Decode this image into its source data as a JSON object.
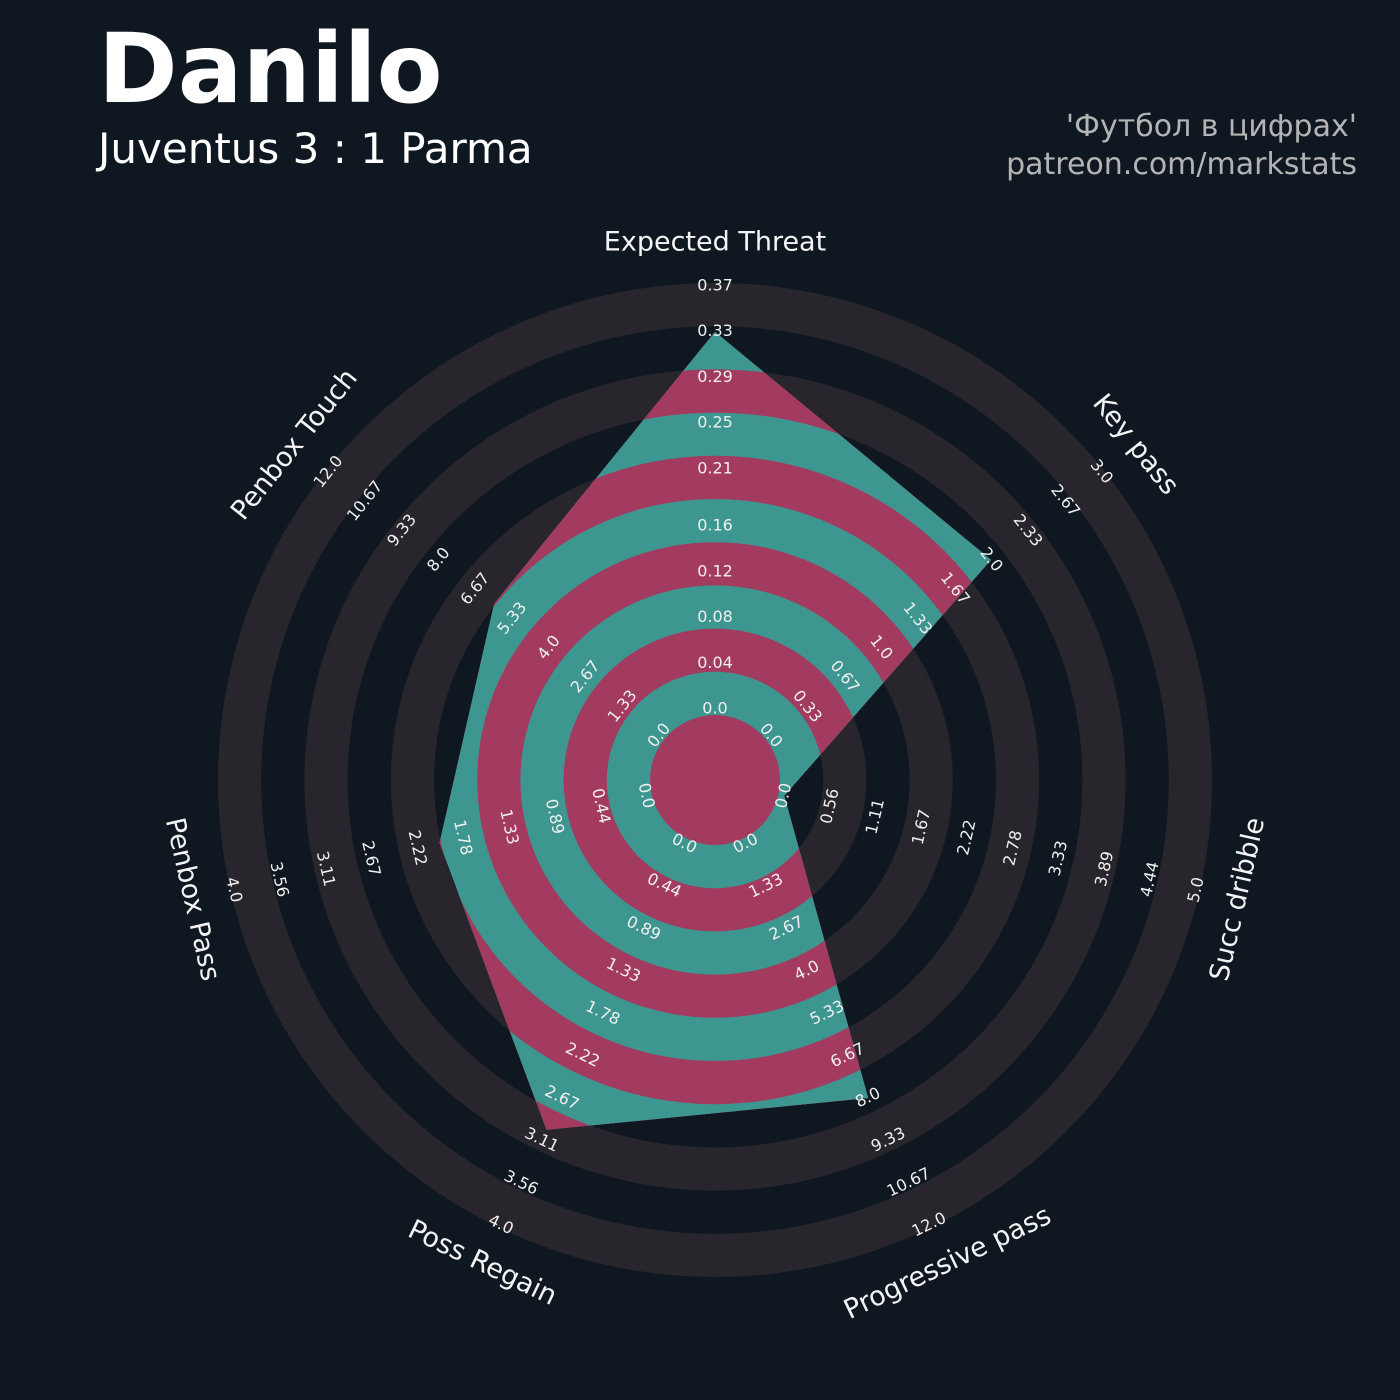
{
  "chart_data": {
    "type": "radar",
    "title": "Danilo",
    "subtitle": "Juventus 3 : 1 Parma",
    "annotations": [
      "'Футбол в цифрах'",
      "patreon.com/markstats"
    ],
    "axes": [
      {
        "name": "Expected Threat",
        "lim": [
          0,
          0.37
        ],
        "ticks": [
          {
            "value": 0,
            "label": "0.0"
          },
          0.04,
          0.08,
          0.12,
          0.16,
          0.21,
          0.25,
          0.29,
          0.33,
          0.37
        ]
      },
      {
        "name": "Key pass",
        "lim": [
          0,
          3
        ],
        "ticks": [
          {
            "value": 0,
            "label": "0.0"
          },
          0.33,
          0.67,
          {
            "value": 1,
            "label": "1.0"
          },
          1.33,
          1.67,
          {
            "value": 2,
            "label": "2.0"
          },
          2.33,
          2.67,
          {
            "value": 3,
            "label": "3.0"
          }
        ]
      },
      {
        "name": "Succ dribble",
        "lim": [
          0,
          5
        ],
        "ticks": [
          {
            "value": 0,
            "label": "0.0"
          },
          0.56,
          1.11,
          1.67,
          2.22,
          2.78,
          3.33,
          3.89,
          4.44,
          {
            "value": 5,
            "label": "5.0"
          }
        ]
      },
      {
        "name": "Progressive pass",
        "lim": [
          0,
          12
        ],
        "ticks": [
          {
            "value": 0,
            "label": "0.0"
          },
          1.33,
          2.67,
          {
            "value": 4,
            "label": "4.0"
          },
          5.33,
          6.67,
          {
            "value": 8,
            "label": "8.0"
          },
          9.33,
          10.67,
          {
            "value": 12,
            "label": "12.0"
          }
        ]
      },
      {
        "name": "Poss Regain",
        "lim": [
          0,
          4
        ],
        "ticks": [
          {
            "value": 0,
            "label": "0.0"
          },
          0.44,
          0.89,
          1.33,
          1.78,
          2.22,
          2.67,
          3.11,
          3.56,
          {
            "value": 4,
            "label": "4.0"
          }
        ]
      },
      {
        "name": "Penbox Pass",
        "lim": [
          0,
          4
        ],
        "ticks": [
          {
            "value": 0,
            "label": "0.0"
          },
          0.44,
          0.89,
          1.33,
          1.78,
          2.22,
          2.67,
          3.11,
          3.56,
          {
            "value": 4,
            "label": "4.0"
          }
        ]
      },
      {
        "name": "Penbox Touch",
        "lim": [
          0,
          12
        ],
        "ticks": [
          {
            "value": 0,
            "label": "0.0"
          },
          1.33,
          2.67,
          {
            "value": 4,
            "label": "4.0"
          },
          5.33,
          6.67,
          {
            "value": 8,
            "label": "8.0"
          },
          9.33,
          10.67,
          {
            "value": 12,
            "label": "12.0"
          }
        ]
      }
    ],
    "values": [
      0.33,
      2.0,
      0,
      8.0,
      3.0,
      2.0,
      6.0
    ],
    "color": "#3e9690",
    "alt_color": "#a33a5f",
    "ring_color": "#28252c"
  }
}
